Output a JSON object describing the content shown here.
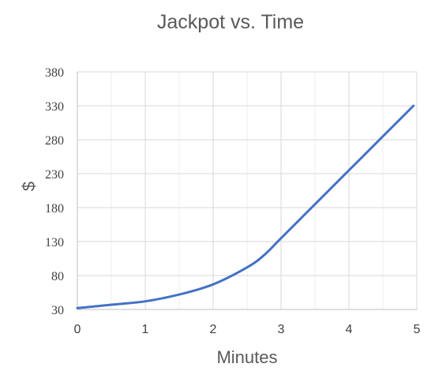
{
  "chart_data": {
    "type": "line",
    "title": "Jackpot vs. Time",
    "xlabel": "Minutes",
    "ylabel": "$",
    "xlim": [
      0,
      5
    ],
    "ylim": [
      30,
      380
    ],
    "xticks": [
      0,
      1,
      2,
      3,
      4,
      5
    ],
    "yticks": [
      30,
      80,
      130,
      180,
      230,
      280,
      330,
      380
    ],
    "grid": true,
    "legend": "none",
    "series": [
      {
        "color": "#4472C4",
        "x": [
          0,
          0.5,
          1,
          1.5,
          2,
          2.5,
          2.75,
          3,
          3.5,
          4,
          4.5,
          4.95
        ],
        "y": [
          32,
          37,
          42,
          52,
          67,
          92,
          110,
          135,
          185,
          235,
          285,
          330
        ]
      }
    ]
  }
}
